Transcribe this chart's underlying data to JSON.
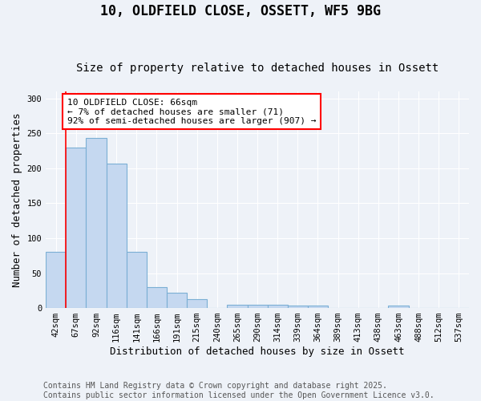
{
  "title_line1": "10, OLDFIELD CLOSE, OSSETT, WF5 9BG",
  "title_line2": "Size of property relative to detached houses in Ossett",
  "xlabel": "Distribution of detached houses by size in Ossett",
  "ylabel": "Number of detached properties",
  "categories": [
    "42sqm",
    "67sqm",
    "92sqm",
    "116sqm",
    "141sqm",
    "166sqm",
    "191sqm",
    "215sqm",
    "240sqm",
    "265sqm",
    "290sqm",
    "314sqm",
    "339sqm",
    "364sqm",
    "389sqm",
    "413sqm",
    "438sqm",
    "463sqm",
    "488sqm",
    "512sqm",
    "537sqm"
  ],
  "values": [
    80,
    230,
    243,
    207,
    80,
    30,
    22,
    13,
    0,
    5,
    5,
    5,
    3,
    3,
    0,
    0,
    0,
    3,
    0,
    0,
    0
  ],
  "bar_color": "#c5d8f0",
  "bar_edge_color": "#7bafd4",
  "red_line_x": 0,
  "annotation_text": "10 OLDFIELD CLOSE: 66sqm\n← 7% of detached houses are smaller (71)\n92% of semi-detached houses are larger (907) →",
  "annotation_box_color": "white",
  "annotation_box_edge_color": "red",
  "ylim": [
    0,
    310
  ],
  "yticks": [
    0,
    50,
    100,
    150,
    200,
    250,
    300
  ],
  "background_color": "#eef2f8",
  "grid_color": "#ffffff",
  "footer_text": "Contains HM Land Registry data © Crown copyright and database right 2025.\nContains public sector information licensed under the Open Government Licence v3.0.",
  "title_fontsize": 12,
  "subtitle_fontsize": 10,
  "label_fontsize": 9,
  "tick_fontsize": 7.5,
  "annotation_fontsize": 8,
  "footer_fontsize": 7
}
